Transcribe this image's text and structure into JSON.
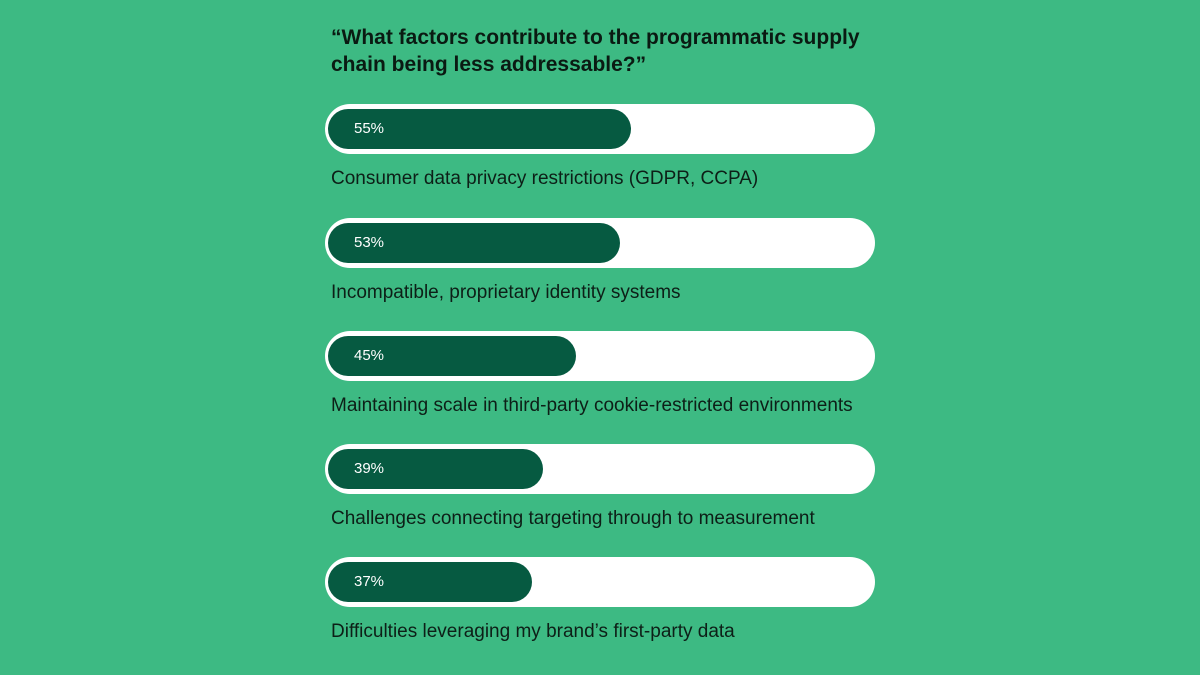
{
  "chart_data": {
    "type": "bar",
    "orientation": "horizontal",
    "title": "“What factors contribute to the programmatic supply chain being less addressable?”",
    "categories": [
      "Consumer data privacy restrictions (GDPR, CCPA)",
      "Incompatible, proprietary identity systems",
      "Maintaining scale in third-party cookie-restricted environments",
      "Challenges connecting targeting through to measurement",
      "Difficulties leveraging my brand’s first-party data"
    ],
    "values": [
      55,
      53,
      45,
      39,
      37
    ],
    "value_labels": [
      "55%",
      "53%",
      "45%",
      "39%",
      "37%"
    ],
    "xlim": [
      0,
      100
    ],
    "unit": "%",
    "grid": false,
    "colors": {
      "background": "#3dba83",
      "bar": "#065a41",
      "track": "#ffffff"
    }
  }
}
